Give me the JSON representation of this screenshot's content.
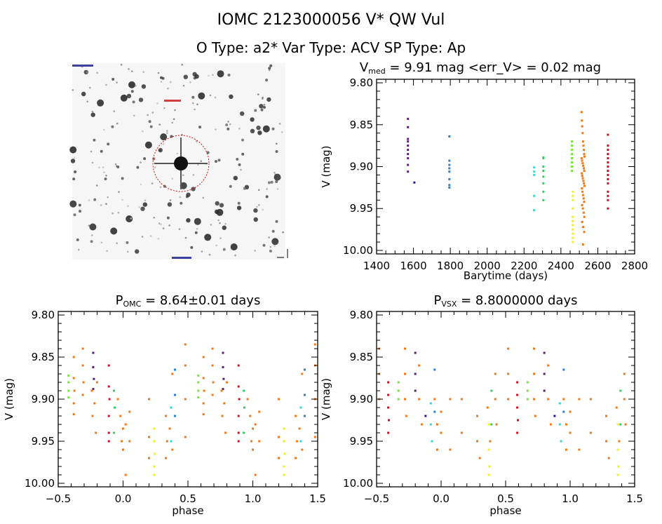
{
  "header": {
    "title": "IOMC 2123000056   V* QW Vul",
    "subtitle": "O Type: a2*   Var Type: ACV   SP Type: Ap"
  },
  "image_panel": {
    "type": "sky-image",
    "circle_color": "#d01010"
  },
  "series_colors": [
    "#5a1a78",
    "#1a1aa0",
    "#2a80d0",
    "#30d8d8",
    "#30d060",
    "#70e830",
    "#f0f020",
    "#f07818",
    "#d01020"
  ],
  "chart_data": [
    {
      "type": "scatter",
      "title_main": "V",
      "title_sub": "med",
      "title_rest": " = 9.91 mag <err_V> = 0.02 mag",
      "xlabel": "Barytime (days)",
      "ylabel": "V (mag)",
      "xlim": [
        1400,
        2800
      ],
      "ylim": [
        9.8,
        10.0
      ],
      "y_inverted": true,
      "xticks": [
        "1400",
        "1600",
        "1800",
        "2000",
        "2200",
        "2400",
        "2600",
        "2800"
      ],
      "yticks": [
        "9.80",
        "9.85",
        "9.90",
        "9.95",
        "10.00"
      ],
      "series": [
        {
          "t": [
            1570,
            1570,
            1570,
            1570,
            1570,
            1570,
            1570,
            1570,
            1570,
            1570
          ],
          "mag": [
            9.843,
            9.853,
            9.867,
            9.87,
            9.875,
            9.88,
            9.885,
            9.89,
            9.898,
            9.906
          ]
        },
        {
          "t": [
            1605
          ],
          "mag": [
            9.919
          ]
        },
        {
          "t": [
            1795,
            1795,
            1795,
            1795,
            1795,
            1795,
            1795,
            1795
          ],
          "mag": [
            9.864,
            9.893,
            9.898,
            9.902,
            9.906,
            9.915,
            9.922,
            9.925
          ]
        },
        {
          "t": [
            2255,
            2255,
            2255,
            2255,
            2255
          ],
          "mag": [
            9.901,
            9.906,
            9.91,
            9.935,
            9.952
          ]
        },
        {
          "t": [
            2305,
            2305,
            2305,
            2305,
            2305,
            2305,
            2305,
            2305
          ],
          "mag": [
            9.889,
            9.89,
            9.9,
            9.905,
            9.912,
            9.92,
            9.93,
            9.94
          ]
        },
        {
          "t": [
            2460,
            2460,
            2460,
            2460,
            2460,
            2460,
            2460,
            2460
          ],
          "mag": [
            9.87,
            9.875,
            9.88,
            9.885,
            9.89,
            9.895,
            9.9,
            9.905
          ]
        },
        {
          "t": [
            2465,
            2465,
            2465,
            2465,
            2465,
            2465,
            2465,
            2465,
            2465,
            2465,
            2465
          ],
          "mag": [
            9.93,
            9.935,
            9.94,
            9.95,
            9.96,
            9.965,
            9.97,
            9.975,
            9.98,
            9.985,
            9.99
          ]
        },
        {
          "t": [
            2512,
            2514,
            2516,
            2518,
            2520,
            2522,
            2524,
            2526,
            2528,
            2512,
            2515,
            2518,
            2521,
            2524,
            2527,
            2513,
            2516,
            2519,
            2522,
            2525,
            2528,
            2514,
            2517,
            2520,
            2523,
            2526,
            2515,
            2519,
            2523,
            2527,
            2516,
            2521,
            2526,
            2520
          ],
          "mag": [
            9.835,
            9.845,
            9.852,
            9.86,
            9.87,
            9.875,
            9.88,
            9.885,
            9.888,
            9.89,
            9.893,
            9.896,
            9.899,
            9.902,
            9.905,
            9.908,
            9.911,
            9.914,
            9.917,
            9.92,
            9.923,
            9.926,
            9.93,
            9.934,
            9.938,
            9.942,
            9.946,
            9.95,
            9.955,
            9.96,
            9.966,
            9.972,
            9.978,
            9.993
          ]
        },
        {
          "t": [
            2655,
            2655,
            2655,
            2655,
            2655,
            2655,
            2655,
            2655,
            2655,
            2655,
            2655,
            2655,
            2655,
            2655,
            2655
          ],
          "mag": [
            9.862,
            9.875,
            9.88,
            9.885,
            9.89,
            9.895,
            9.9,
            9.905,
            9.91,
            9.915,
            9.92,
            9.93,
            9.935,
            9.94,
            9.95
          ]
        }
      ]
    },
    {
      "type": "scatter",
      "title_main": "P",
      "title_sub": "OMC",
      "title_rest": " = 8.64±0.01 days",
      "xlabel": "phase",
      "ylabel": "V (mag)",
      "xlim": [
        -0.5,
        1.5
      ],
      "ylim": [
        9.8,
        10.0
      ],
      "y_inverted": true,
      "xticks": [
        "−0.5",
        "0.0",
        "0.5",
        "1.0",
        "1.5"
      ],
      "yticks": [
        "9.80",
        "9.85",
        "9.90",
        "9.95",
        "10.00"
      ],
      "points_phase_mag_series": [
        [
          0.58,
          9.872,
          5
        ],
        [
          0.58,
          9.88,
          5
        ],
        [
          0.58,
          9.89,
          5
        ],
        [
          0.58,
          9.898,
          5
        ],
        [
          0.62,
          9.85,
          7
        ],
        [
          0.62,
          9.875,
          7
        ],
        [
          0.625,
          9.89,
          7
        ],
        [
          0.62,
          9.905,
          7
        ],
        [
          0.62,
          9.918,
          7
        ],
        [
          0.69,
          9.84,
          7
        ],
        [
          0.69,
          9.86,
          7
        ],
        [
          0.695,
          9.88,
          7
        ],
        [
          0.69,
          9.895,
          7
        ],
        [
          0.77,
          9.845,
          0
        ],
        [
          0.77,
          9.862,
          0
        ],
        [
          0.775,
          9.876,
          0
        ],
        [
          0.77,
          9.888,
          0
        ],
        [
          0.76,
          9.89,
          7
        ],
        [
          0.78,
          9.905,
          7
        ],
        [
          0.765,
          9.92,
          7
        ],
        [
          0.8,
          9.88,
          7
        ],
        [
          0.79,
          9.94,
          7
        ],
        [
          0.89,
          9.86,
          8
        ],
        [
          0.89,
          9.885,
          8
        ],
        [
          0.895,
          9.9,
          8
        ],
        [
          0.89,
          9.92,
          8
        ],
        [
          0.89,
          9.94,
          8
        ],
        [
          0.89,
          9.95,
          8
        ],
        [
          0.93,
          9.89,
          4
        ],
        [
          0.935,
          9.91,
          4
        ],
        [
          0.93,
          9.94,
          4
        ],
        [
          0.96,
          9.9,
          7
        ],
        [
          0.98,
          9.92,
          7
        ],
        [
          0.99,
          9.95,
          7
        ],
        [
          0.0,
          9.935,
          7
        ],
        [
          0.0,
          9.96,
          7
        ],
        [
          0.02,
          9.93,
          7
        ],
        [
          0.02,
          9.99,
          7
        ],
        [
          0.05,
          9.915,
          7
        ],
        [
          0.05,
          9.95,
          7
        ],
        [
          0.2,
          9.9,
          7
        ],
        [
          0.2,
          9.945,
          7
        ],
        [
          0.2,
          9.97,
          7
        ],
        [
          0.24,
          9.935,
          6
        ],
        [
          0.24,
          9.95,
          6
        ],
        [
          0.245,
          9.965,
          6
        ],
        [
          0.24,
          9.98,
          6
        ],
        [
          0.24,
          9.99,
          6
        ],
        [
          0.33,
          9.92,
          7
        ],
        [
          0.34,
          9.95,
          7
        ],
        [
          0.33,
          9.97,
          7
        ],
        [
          0.36,
          9.935,
          7
        ],
        [
          0.37,
          9.91,
          7
        ],
        [
          0.38,
          9.87,
          7
        ],
        [
          0.38,
          9.96,
          7
        ],
        [
          0.37,
          9.91,
          3
        ],
        [
          0.37,
          9.95,
          3
        ],
        [
          0.4,
          9.865,
          2
        ],
        [
          0.4,
          9.895,
          2
        ],
        [
          0.4,
          9.92,
          2
        ],
        [
          0.48,
          9.835,
          7
        ],
        [
          0.48,
          9.86,
          7
        ],
        [
          0.48,
          9.9,
          7
        ],
        [
          0.48,
          9.945,
          7
        ]
      ]
    },
    {
      "type": "scatter",
      "title_main": "P",
      "title_sub": "VSX",
      "title_rest": " = 8.8000000 days",
      "xlabel": "phase",
      "ylabel": "V (mag)",
      "xlim": [
        -0.5,
        1.5
      ],
      "ylim": [
        9.8,
        10.0
      ],
      "y_inverted": true,
      "xticks": [
        "−0.5",
        "0.0",
        "0.5",
        "1.0",
        "1.5"
      ],
      "yticks": [
        "9.80",
        "9.85",
        "9.90",
        "9.95",
        "10.00"
      ],
      "points_phase_mag_series": [
        [
          0.52,
          9.84,
          7
        ],
        [
          0.52,
          9.87,
          7
        ],
        [
          0.52,
          9.9,
          7
        ],
        [
          0.59,
          9.88,
          8
        ],
        [
          0.59,
          9.895,
          8
        ],
        [
          0.59,
          9.91,
          8
        ],
        [
          0.595,
          9.925,
          8
        ],
        [
          0.59,
          9.94,
          8
        ],
        [
          0.67,
          9.88,
          5
        ],
        [
          0.67,
          9.89,
          5
        ],
        [
          0.67,
          9.9,
          5
        ],
        [
          0.72,
          9.84,
          7
        ],
        [
          0.72,
          9.87,
          7
        ],
        [
          0.72,
          9.9,
          7
        ],
        [
          0.73,
          9.92,
          7
        ],
        [
          0.8,
          9.845,
          0
        ],
        [
          0.8,
          9.87,
          0
        ],
        [
          0.8,
          9.89,
          0
        ],
        [
          0.83,
          9.86,
          7
        ],
        [
          0.83,
          9.9,
          7
        ],
        [
          0.85,
          9.93,
          7
        ],
        [
          0.88,
          9.92,
          1
        ],
        [
          0.92,
          9.905,
          3
        ],
        [
          0.92,
          9.93,
          3
        ],
        [
          0.93,
          9.95,
          3
        ],
        [
          0.95,
          9.865,
          2
        ],
        [
          0.95,
          9.915,
          2
        ],
        [
          0.95,
          9.9,
          7
        ],
        [
          0.97,
          9.93,
          7
        ],
        [
          0.97,
          9.96,
          7
        ],
        [
          0.0,
          9.915,
          7
        ],
        [
          0.0,
          9.94,
          7
        ],
        [
          0.07,
          9.9,
          7
        ],
        [
          0.07,
          9.96,
          7
        ],
        [
          0.16,
          9.9,
          7
        ],
        [
          0.16,
          9.94,
          7
        ],
        [
          0.28,
          9.92,
          7
        ],
        [
          0.28,
          9.95,
          7
        ],
        [
          0.3,
          9.97,
          7
        ],
        [
          0.37,
          9.93,
          6
        ],
        [
          0.37,
          9.96,
          6
        ],
        [
          0.375,
          9.98,
          6
        ],
        [
          0.37,
          9.99,
          6
        ],
        [
          0.36,
          9.91,
          7
        ],
        [
          0.38,
          9.95,
          7
        ],
        [
          0.39,
          9.89,
          4
        ],
        [
          0.39,
          9.93,
          4
        ],
        [
          0.42,
          9.87,
          7
        ],
        [
          0.42,
          9.9,
          7
        ],
        [
          0.43,
          9.93,
          7
        ]
      ]
    }
  ]
}
